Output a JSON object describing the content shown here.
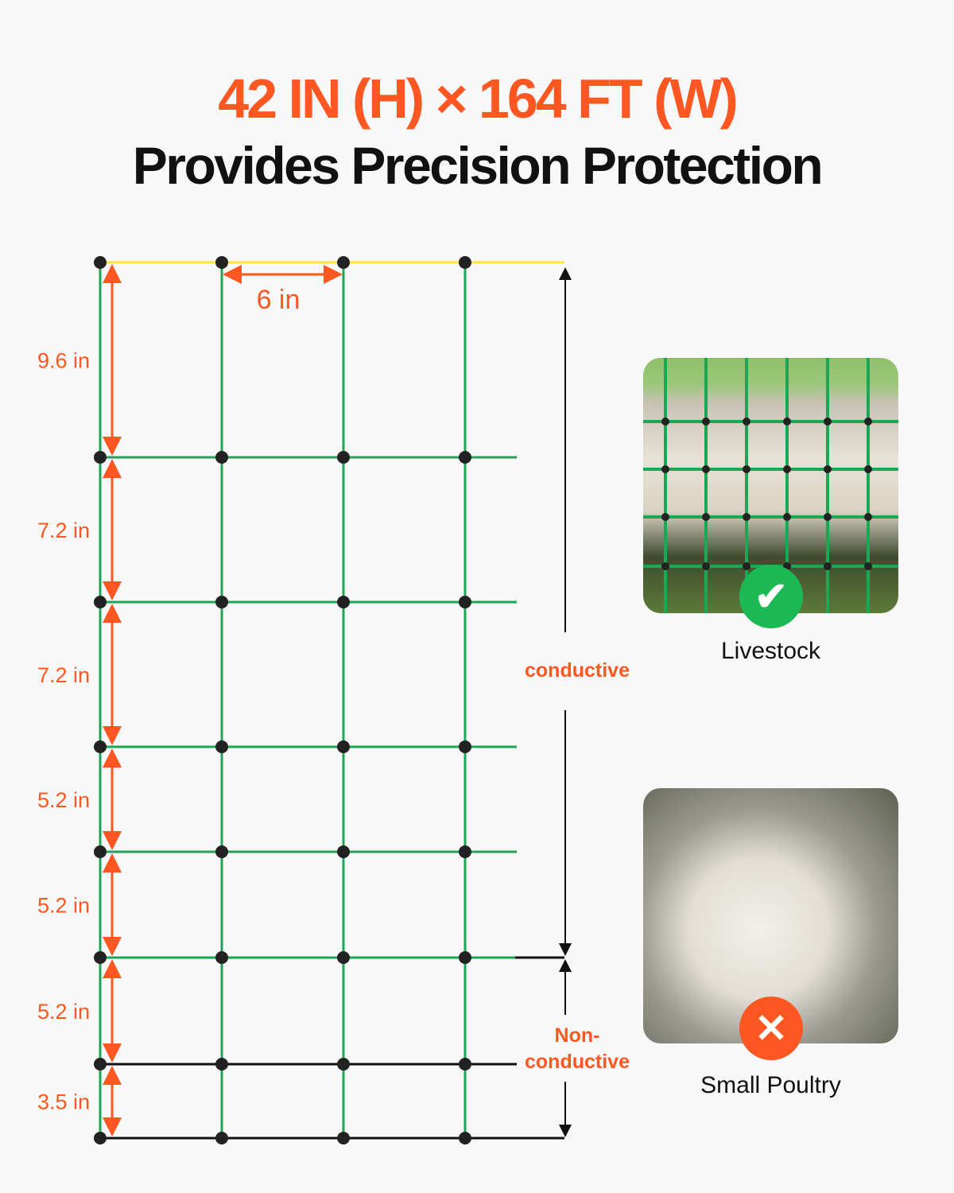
{
  "title": {
    "line1": "42 IN (H) × 164 FT (W)",
    "line2": "Provides Precision Protection",
    "accent": "#ff5722"
  },
  "diagram": {
    "width_label": "6 in",
    "spacing_labels": [
      "9.6 in",
      "7.2 in",
      "7.2 in",
      "5.2 in",
      "5.2 in",
      "5.2 in",
      "3.5 in"
    ],
    "conductive_label": "conductive",
    "nonconductive_label": [
      "Non-",
      "conductive"
    ],
    "colors": {
      "wire": "#1aa855",
      "top_wire": "#ffe53b",
      "ground_wire": "#111111",
      "dimension": "#ff5722"
    }
  },
  "cards": [
    {
      "label": "Livestock",
      "badge": "check-icon",
      "badge_color": "#1db954"
    },
    {
      "label": "Small Poultry",
      "badge": "x-icon",
      "badge_color": "#ff5722"
    }
  ]
}
